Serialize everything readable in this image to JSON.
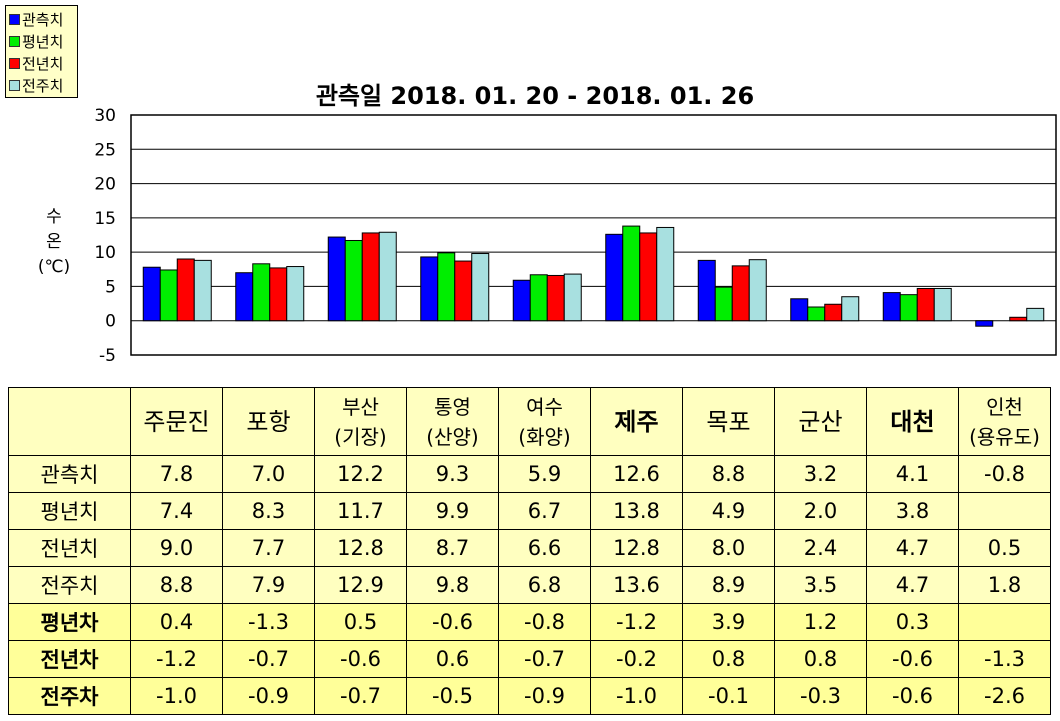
{
  "legend": [
    {
      "label": "관측치",
      "color": "#0000FF"
    },
    {
      "label": "평년치",
      "color": "#00EE00"
    },
    {
      "label": "전년치",
      "color": "#FF0000"
    },
    {
      "label": "전주치",
      "color": "#A8E0E0"
    }
  ],
  "chart_data": {
    "type": "bar",
    "title": "관측일 2018. 01. 20 - 2018. 01. 26",
    "ylabel": "수 온 (℃)",
    "ylim": [
      -5,
      30
    ],
    "yticks": [
      "30",
      "25",
      "20",
      "15",
      "10",
      "5",
      "0",
      "-5"
    ],
    "grid": true,
    "legend_position": "top-left",
    "categories": [
      "주문진",
      "포항",
      "부산(기장)",
      "통영(산양)",
      "여수(화양)",
      "제주",
      "목포",
      "군산",
      "대천",
      "인천(용유도)"
    ],
    "series": [
      {
        "name": "관측치",
        "color": "#0000FF",
        "values": [
          7.8,
          7.0,
          12.2,
          9.3,
          5.9,
          12.6,
          8.8,
          3.2,
          4.1,
          -0.8
        ]
      },
      {
        "name": "평년치",
        "color": "#00EE00",
        "values": [
          7.4,
          8.3,
          11.7,
          9.9,
          6.7,
          13.8,
          4.9,
          2.0,
          3.8,
          null
        ]
      },
      {
        "name": "전년치",
        "color": "#FF0000",
        "values": [
          9.0,
          7.7,
          12.8,
          8.7,
          6.6,
          12.8,
          8.0,
          2.4,
          4.7,
          0.5
        ]
      },
      {
        "name": "전주치",
        "color": "#A8E0E0",
        "values": [
          8.8,
          7.9,
          12.9,
          9.8,
          6.8,
          13.6,
          8.9,
          3.5,
          4.7,
          1.8
        ]
      }
    ]
  },
  "table": {
    "headers": [
      [
        "주문진"
      ],
      [
        "포항"
      ],
      [
        "부산",
        "(기장)"
      ],
      [
        "통영",
        "(산양)"
      ],
      [
        "여수",
        "(화양)"
      ],
      [
        "제주"
      ],
      [
        "목포"
      ],
      [
        "군산"
      ],
      [
        "대천"
      ],
      [
        "인천",
        "(용유도)"
      ]
    ],
    "rows": [
      {
        "label": "관측치",
        "cells": [
          "7.8",
          "7.0",
          "12.2",
          "9.3",
          "5.9",
          "12.6",
          "8.8",
          "3.2",
          "4.1",
          "-0.8"
        ]
      },
      {
        "label": "평년치",
        "cells": [
          "7.4",
          "8.3",
          "11.7",
          "9.9",
          "6.7",
          "13.8",
          "4.9",
          "2.0",
          "3.8",
          ""
        ]
      },
      {
        "label": "전년치",
        "cells": [
          "9.0",
          "7.7",
          "12.8",
          "8.7",
          "6.6",
          "12.8",
          "8.0",
          "2.4",
          "4.7",
          "0.5"
        ]
      },
      {
        "label": "전주치",
        "cells": [
          "8.8",
          "7.9",
          "12.9",
          "9.8",
          "6.8",
          "13.6",
          "8.9",
          "3.5",
          "4.7",
          "1.8"
        ]
      },
      {
        "label": "평년차",
        "cells": [
          "0.4",
          "-1.3",
          "0.5",
          "-0.6",
          "-0.8",
          "-1.2",
          "3.9",
          "1.2",
          "0.3",
          ""
        ]
      },
      {
        "label": "전년차",
        "cells": [
          "-1.2",
          "-0.7",
          "-0.6",
          "0.6",
          "-0.7",
          "-0.2",
          "0.8",
          "0.8",
          "-0.6",
          "-1.3"
        ]
      },
      {
        "label": "전주차",
        "cells": [
          "-1.0",
          "-0.9",
          "-0.7",
          "-0.5",
          "-0.9",
          "-1.0",
          "-0.1",
          "-0.3",
          "-0.6",
          "-2.6"
        ]
      }
    ]
  }
}
